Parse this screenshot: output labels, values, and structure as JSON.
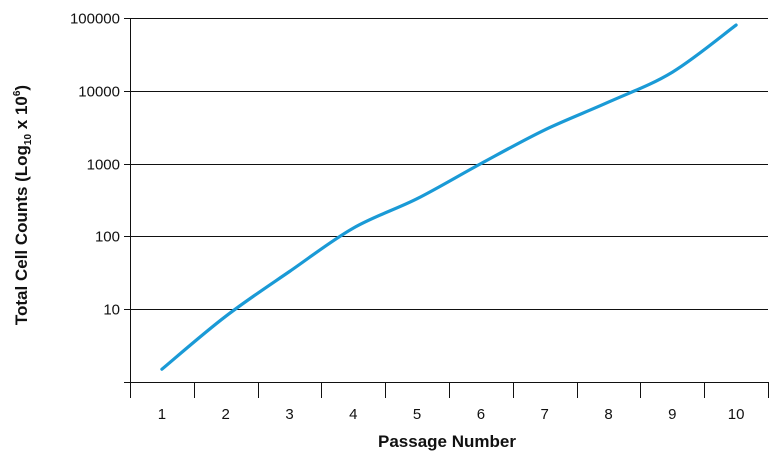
{
  "chart_data": {
    "type": "line",
    "title": "",
    "xlabel": "Passage Number",
    "ylabel": {
      "prefix": "Total Cell Counts (Log",
      "sub": "10",
      "middle": " x 10",
      "sup": "6",
      "suffix": ")"
    },
    "y_scale": "log",
    "grid": "horizontal",
    "x": [
      1,
      2,
      3,
      4,
      5,
      6,
      7,
      8,
      9,
      10
    ],
    "x_tick_labels": [
      "1",
      "2",
      "3",
      "4",
      "5",
      "6",
      "7",
      "8",
      "9",
      "10"
    ],
    "xlim": [
      0.5,
      10.5
    ],
    "ylim": [
      1,
      100000
    ],
    "y_ticks": [
      10,
      100,
      1000,
      10000,
      100000
    ],
    "y_tick_labels": [
      "10",
      "100",
      "1000",
      "10000",
      "100000"
    ],
    "series": [
      {
        "color": "#1a9ad6",
        "values": [
          1.5,
          8,
          33,
          130,
          330,
          1000,
          2900,
          7000,
          18000,
          80000
        ]
      }
    ]
  }
}
